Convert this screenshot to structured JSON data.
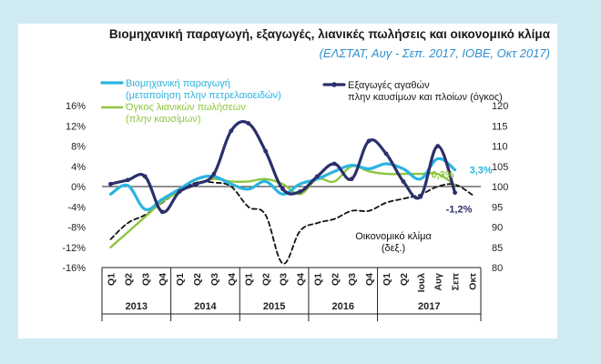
{
  "title": "Βιομηχανική παραγωγή, εξαγωγές, λιανικές πωλήσεις και οικονομικό κλίμα",
  "subtitle": "(ΕΛΣΤΑΤ, Αυγ - Σεπ. 2017, ΙΟΒΕ, Οκτ 2017)",
  "colors": {
    "industrial": "#2ab4e0",
    "exports": "#2b2f6b",
    "retail": "#8dc63f",
    "climate": "#111111",
    "title_blue": "#2e8fd0",
    "panel_bg": "#ffffff",
    "page_bg": "#cfeaf1"
  },
  "legend": {
    "industrial": [
      "Βιομηχανική παραγωγή",
      "(μεταποίηση πλην πετρελαιοειδών)"
    ],
    "retail": [
      "Όγκος λιανικών πωλήσεων",
      "(πλην καυσίμων)"
    ],
    "exports": [
      "Εξαγωγές αγαθών",
      "πλην καυσίμων και πλοίων (όγκος)"
    ]
  },
  "annotations": {
    "climate_label": [
      "Οικονομικό κλίμα",
      "(δεξ.)"
    ],
    "industrial_last": "3,3%",
    "retail_last": "0,3%",
    "exports_last": "-1,2%"
  },
  "chart_data": {
    "type": "line",
    "categories": [
      "Q1",
      "Q2",
      "Q3",
      "Q4",
      "Q1",
      "Q2",
      "Q3",
      "Q4",
      "Q1",
      "Q2",
      "Q3",
      "Q4",
      "Q1",
      "Q2",
      "Q3",
      "Q4",
      "Q1",
      "Q2",
      "Ιουλ",
      "Αυγ",
      "Σεπ",
      "Οκτ"
    ],
    "year_groups": [
      {
        "label": "2013",
        "span": 4
      },
      {
        "label": "2014",
        "span": 4
      },
      {
        "label": "2015",
        "span": 4
      },
      {
        "label": "2016",
        "span": 4
      },
      {
        "label": "2017",
        "span": 6
      }
    ],
    "y_left": {
      "min": -16,
      "max": 16,
      "step": 4,
      "format": "percent"
    },
    "y_right": {
      "min": 80,
      "max": 120,
      "step": 5
    },
    "series": [
      {
        "name": "Βιομηχανική παραγωγή",
        "key": "industrial",
        "axis": "left",
        "dash": false,
        "width": 3.2,
        "values": [
          -1.5,
          0.2,
          -4.5,
          -2.5,
          -0.5,
          1.5,
          2.0,
          0.5,
          -0.5,
          1.0,
          -1.5,
          0.5,
          1.5,
          3.0,
          4.2,
          3.5,
          4.5,
          3.5,
          1.5,
          5.5,
          3.3,
          null
        ]
      },
      {
        "name": "Εξαγωγές αγαθών",
        "key": "exports",
        "axis": "left",
        "dash": false,
        "width": 3.2,
        "values": [
          0.5,
          1.3,
          2.0,
          -5.0,
          -1.0,
          0.5,
          2.5,
          11.0,
          12.5,
          7.0,
          -0.5,
          -1.0,
          2.0,
          4.5,
          1.5,
          9.0,
          6.5,
          1.0,
          -2.0,
          8.0,
          -1.2,
          null
        ]
      },
      {
        "name": "Όγκος λιανικών πωλήσεων",
        "key": "retail",
        "axis": "left",
        "dash": false,
        "width": 2.4,
        "values": [
          -12.0,
          -9.0,
          -6.0,
          -3.0,
          -1.0,
          0.5,
          1.5,
          1.0,
          1.0,
          1.5,
          0.5,
          -1.5,
          1.5,
          1.0,
          4.0,
          3.0,
          2.5,
          2.5,
          2.5,
          2.5,
          0.3,
          null
        ]
      },
      {
        "name": "Οικονομικό κλίμα",
        "key": "climate",
        "axis": "right",
        "dash": true,
        "width": 1.8,
        "values": [
          87,
          91,
          93,
          96,
          99,
          101,
          101,
          100,
          95,
          93,
          81,
          89,
          91,
          92,
          94,
          94,
          96,
          97,
          98,
          100,
          100.5,
          98
        ]
      }
    ]
  }
}
